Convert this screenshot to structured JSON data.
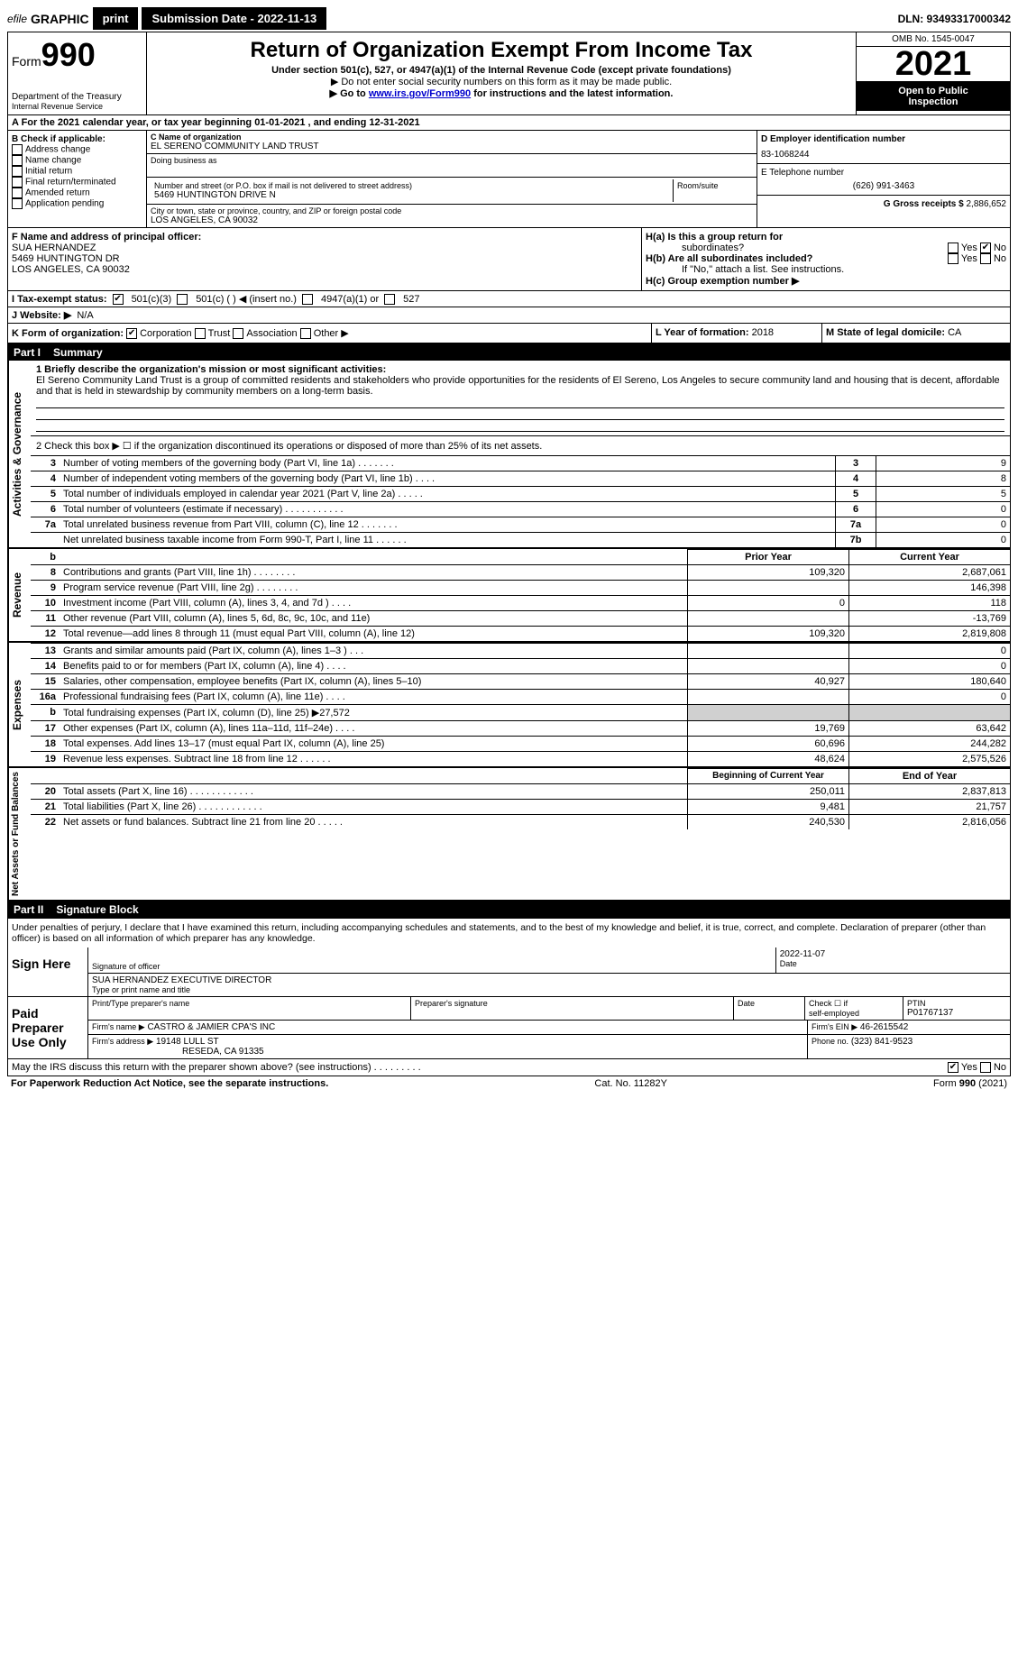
{
  "topbar": {
    "efile_prefix": "efile",
    "efile_graphic": "GRAPHIC",
    "efile_print": "print",
    "submission_label": "Submission Date - 2022-11-13",
    "dln": "DLN: 93493317000342"
  },
  "header": {
    "form_word": "Form",
    "form_number": "990",
    "title": "Return of Organization Exempt From Income Tax",
    "subtitle": "Under section 501(c), 527, or 4947(a)(1) of the Internal Revenue Code (except private foundations)",
    "ssn_line": "▶ Do not enter social security numbers on this form as it may be made public.",
    "goto_prefix": "▶ Go to ",
    "goto_link": "www.irs.gov/Form990",
    "goto_suffix": " for instructions and the latest information.",
    "dept": "Department of the Treasury",
    "irs": "Internal Revenue Service",
    "omb": "OMB No. 1545-0047",
    "year": "2021",
    "inspection1": "Open to Public",
    "inspection2": "Inspection"
  },
  "row_a": "A For the 2021 calendar year, or tax year beginning 01-01-2021    , and ending 12-31-2021",
  "section_b": {
    "heading": "B Check if applicable:",
    "items": [
      "Address change",
      "Name change",
      "Initial return",
      "Final return/terminated",
      "Amended return",
      "Application pending"
    ]
  },
  "section_c": {
    "name_label": "C Name of organization",
    "name": "EL SERENO COMMUNITY LAND TRUST",
    "dba_label": "Doing business as",
    "street_label": "Number and street (or P.O. box if mail is not delivered to street address)",
    "room_label": "Room/suite",
    "street": "5469 HUNTINGTON DRIVE N",
    "city_label": "City or town, state or province, country, and ZIP or foreign postal code",
    "city": "LOS ANGELES, CA  90032"
  },
  "section_d": {
    "ein_label": "D Employer identification number",
    "ein": "83-1068244",
    "phone_label": "E Telephone number",
    "phone": "(626) 991-3463",
    "gross_label": "G Gross receipts $",
    "gross": "2,886,652"
  },
  "section_f": {
    "label": "F  Name and address of principal officer:",
    "name": "SUA HERNANDEZ",
    "street": "5469 HUNTINGTON DR",
    "city": "LOS ANGELES, CA  90032"
  },
  "section_h": {
    "a_label": "H(a)  Is this a group return for",
    "a_sub": "subordinates?",
    "b_label": "H(b)  Are all subordinates included?",
    "b_note": "If \"No,\" attach a list. See instructions.",
    "c_label": "H(c)  Group exemption number ▶",
    "yes": "Yes",
    "no": "No"
  },
  "row_i": {
    "label": "I   Tax-exempt status:",
    "opt1": "501(c)(3)",
    "opt2": "501(c) (   ) ◀ (insert no.)",
    "opt3": "4947(a)(1) or",
    "opt4": "527"
  },
  "row_j": {
    "label": "J   Website: ▶",
    "value": "N/A"
  },
  "row_k": {
    "label": "K Form of organization:",
    "opts": [
      "Corporation",
      "Trust",
      "Association",
      "Other ▶"
    ]
  },
  "row_l": {
    "label": "L Year of formation:",
    "value": "2018"
  },
  "row_m": {
    "label": "M State of legal domicile:",
    "value": "CA"
  },
  "part1": {
    "label": "Part I",
    "title": "Summary"
  },
  "governance": {
    "vert": "Activities & Governance",
    "line1_label": "1  Briefly describe the organization's mission or most significant activities:",
    "line1_text": "El Sereno Community Land Trust is a group of committed residents and stakeholders who provide opportunities for the residents of El Sereno, Los Angeles to secure community land and housing that is decent, affordable and that is held in stewardship by community members on a long-term basis.",
    "line2": "2   Check this box ▶ ☐  if the organization discontinued its operations or disposed of more than 25% of its net assets.",
    "rows": [
      {
        "n": "3",
        "t": "Number of voting members of the governing body (Part VI, line 1a)  .    .    .    .    .    .    .",
        "b": "3",
        "v": "9"
      },
      {
        "n": "4",
        "t": "Number of independent voting members of the governing body (Part VI, line 1b)  .    .    .    .",
        "b": "4",
        "v": "8"
      },
      {
        "n": "5",
        "t": "Total number of individuals employed in calendar year 2021 (Part V, line 2a)  .    .    .    .    .",
        "b": "5",
        "v": "5"
      },
      {
        "n": "6",
        "t": "Total number of volunteers (estimate if necessary)   .    .    .    .    .    .    .    .    .    .    .",
        "b": "6",
        "v": "0"
      },
      {
        "n": "7a",
        "t": "Total unrelated business revenue from Part VIII, column (C), line 12  .    .    .    .    .    .    .",
        "b": "7a",
        "v": "0"
      },
      {
        "n": "",
        "t": "Net unrelated business taxable income from Form 990-T, Part I, line 11   .    .    .    .    .    .",
        "b": "7b",
        "v": "0"
      }
    ]
  },
  "revenue": {
    "vert": "Revenue",
    "b_head": "b",
    "prior_head": "Prior Year",
    "current_head": "Current Year",
    "rows": [
      {
        "n": "8",
        "t": "Contributions and grants (Part VIII, line 1h)   .    .    .    .    .    .    .    .",
        "p": "109,320",
        "c": "2,687,061"
      },
      {
        "n": "9",
        "t": "Program service revenue (Part VIII, line 2g)   .    .    .    .    .    .    .    .",
        "p": "",
        "c": "146,398"
      },
      {
        "n": "10",
        "t": "Investment income (Part VIII, column (A), lines 3, 4, and 7d )   .    .    .    .",
        "p": "0",
        "c": "118"
      },
      {
        "n": "11",
        "t": "Other revenue (Part VIII, column (A), lines 5, 6d, 8c, 9c, 10c, and 11e)",
        "p": "",
        "c": "-13,769"
      },
      {
        "n": "12",
        "t": "Total revenue—add lines 8 through 11 (must equal Part VIII, column (A), line 12)",
        "p": "109,320",
        "c": "2,819,808"
      }
    ]
  },
  "expenses": {
    "vert": "Expenses",
    "rows": [
      {
        "n": "13",
        "t": "Grants and similar amounts paid (Part IX, column (A), lines 1–3 )  .    .    .",
        "p": "",
        "c": "0"
      },
      {
        "n": "14",
        "t": "Benefits paid to or for members (Part IX, column (A), line 4)  .    .    .    .",
        "p": "",
        "c": "0"
      },
      {
        "n": "15",
        "t": "Salaries, other compensation, employee benefits (Part IX, column (A), lines 5–10)",
        "p": "40,927",
        "c": "180,640"
      },
      {
        "n": "16a",
        "t": "Professional fundraising fees (Part IX, column (A), line 11e)  .    .    .    .",
        "p": "",
        "c": "0"
      },
      {
        "n": "b",
        "t": "Total fundraising expenses (Part IX, column (D), line 25) ▶27,572",
        "p": "shade",
        "c": "shade"
      },
      {
        "n": "17",
        "t": "Other expenses (Part IX, column (A), lines 11a–11d, 11f–24e)   .    .    .    .",
        "p": "19,769",
        "c": "63,642"
      },
      {
        "n": "18",
        "t": "Total expenses. Add lines 13–17 (must equal Part IX, column (A), line 25)",
        "p": "60,696",
        "c": "244,282"
      },
      {
        "n": "19",
        "t": "Revenue less expenses. Subtract line 18 from line 12  .    .    .    .    .    .",
        "p": "48,624",
        "c": "2,575,526"
      }
    ]
  },
  "netassets": {
    "vert": "Net Assets or Fund Balances",
    "begin_head": "Beginning of Current Year",
    "end_head": "End of Year",
    "rows": [
      {
        "n": "20",
        "t": "Total assets (Part X, line 16)  .    .    .    .    .    .    .    .    .    .    .    .",
        "p": "250,011",
        "c": "2,837,813"
      },
      {
        "n": "21",
        "t": "Total liabilities (Part X, line 26)  .    .    .    .    .    .    .    .    .    .    .    .",
        "p": "9,481",
        "c": "21,757"
      },
      {
        "n": "22",
        "t": "Net assets or fund balances. Subtract line 21 from line 20  .    .    .    .    .",
        "p": "240,530",
        "c": "2,816,056"
      }
    ]
  },
  "part2": {
    "label": "Part II",
    "title": "Signature Block"
  },
  "penalties": "Under penalties of perjury, I declare that I have examined this return, including accompanying schedules and statements, and to the best of my knowledge and belief, it is true, correct, and complete. Declaration of preparer (other than officer) is based on all information of which preparer has any knowledge.",
  "sign": {
    "left": "Sign Here",
    "sig_label": "Signature of officer",
    "date_label": "Date",
    "date": "2022-11-07",
    "name": "SUA HERNANDEZ  EXECUTIVE DIRECTOR",
    "name_label": "Type or print name and title"
  },
  "paid": {
    "left1": "Paid",
    "left2": "Preparer",
    "left3": "Use Only",
    "h1": "Print/Type preparer's name",
    "h2": "Preparer's signature",
    "h3": "Date",
    "h4_a": "Check ☐ if",
    "h4_b": "self-employed",
    "h5": "PTIN",
    "ptin": "P01767137",
    "firm_name_label": "Firm's name    ▶",
    "firm_name": "CASTRO & JAMIER CPA'S INC",
    "firm_ein_label": "Firm's EIN ▶",
    "firm_ein": "46-2615542",
    "firm_addr_label": "Firm's address ▶",
    "firm_addr1": "19148 LULL ST",
    "firm_addr2": "RESEDA, CA  91335",
    "phone_label": "Phone no.",
    "phone": "(323) 841-9523"
  },
  "discuss": {
    "text": "May the IRS discuss this return with the preparer shown above? (see instructions)   .    .    .    .    .    .    .    .    .",
    "yes": "Yes",
    "no": "No"
  },
  "footer": {
    "left": "For Paperwork Reduction Act Notice, see the separate instructions.",
    "center": "Cat. No. 11282Y",
    "right": "Form 990 (2021)"
  }
}
